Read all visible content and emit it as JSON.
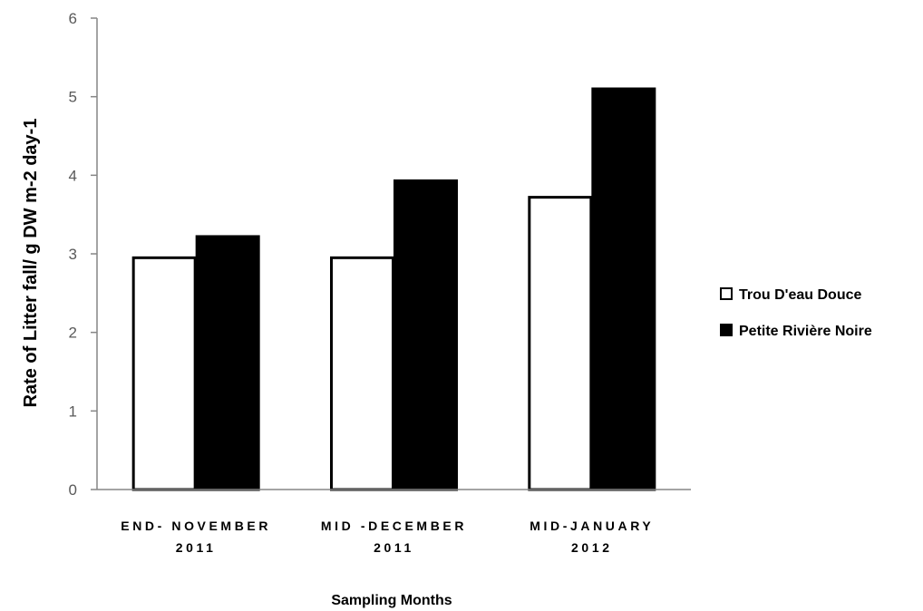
{
  "chart_data": {
    "type": "bar",
    "title": "",
    "xlabel": "Sampling Months",
    "ylabel": "Rate of Litter fall/  g DW m-2 day-1",
    "ylim": [
      0,
      6
    ],
    "yticks": [
      "0",
      "1",
      "2",
      "3",
      "4",
      "5",
      "6"
    ],
    "categories": [
      [
        "END- NOVEMBER",
        "2011"
      ],
      [
        "MID -DECEMBER",
        "2011"
      ],
      [
        "MID-JANUARY",
        "2012"
      ]
    ],
    "series": [
      {
        "name": "Trou D'eau Douce",
        "fill": "#ffffff",
        "stroke": "#000000",
        "values": [
          2.95,
          2.95,
          3.72
        ]
      },
      {
        "name": "Petite Rivière Noire",
        "fill": "#000000",
        "stroke": "#000000",
        "values": [
          3.22,
          3.93,
          5.1
        ]
      }
    ],
    "grid": false,
    "legend_position": "right"
  }
}
